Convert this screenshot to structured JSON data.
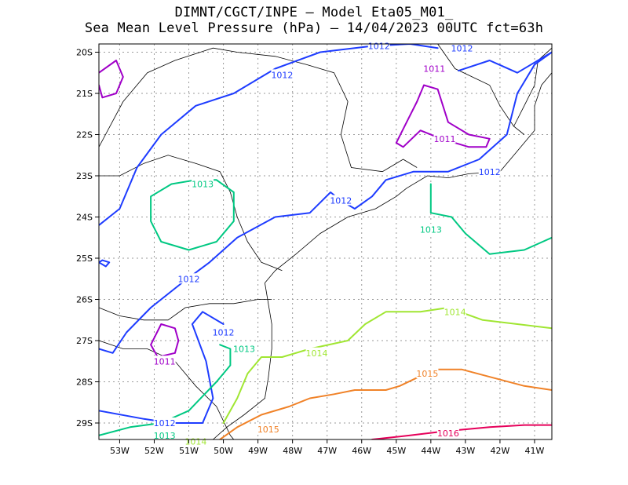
{
  "header": {
    "line1": "DIMNT/CGCT/INPE –  Model Eta05_M01_",
    "line2": "Sea Mean Level Pressure (hPa) – 14/04/2023 00UTC fct=63h"
  },
  "chart_data": {
    "type": "contour",
    "title": "DIMNT/CGCT/INPE –  Model Eta05_M01_",
    "subtitle": "Sea Mean Level Pressure (hPa) – 14/04/2023 00UTC fct=63h",
    "xlim": [
      -53.6,
      -40.5
    ],
    "ylim": [
      -29.4,
      -19.8
    ],
    "x_ticks": [
      "53W",
      "52W",
      "51W",
      "50W",
      "49W",
      "48W",
      "47W",
      "46W",
      "45W",
      "44W",
      "43W",
      "42W",
      "41W"
    ],
    "y_ticks": [
      "20S",
      "21S",
      "22S",
      "23S",
      "24S",
      "25S",
      "26S",
      "27S",
      "28S",
      "29S"
    ],
    "grid": true,
    "colors": {
      "1011": "#a000c8",
      "1012": "#1e3cff",
      "1013": "#00c882",
      "1014": "#a0e632",
      "1015": "#f08228",
      "1016": "#e6005a",
      "coast": "#000000"
    },
    "contours": [
      {
        "level": 1012,
        "color": "#1e3cff",
        "points": [
          [
            -53.6,
            -24.2
          ],
          [
            -53.0,
            -23.8
          ],
          [
            -52.5,
            -22.8
          ],
          [
            -51.8,
            -22.0
          ],
          [
            -50.8,
            -21.3
          ],
          [
            -49.7,
            -21.0
          ],
          [
            -48.5,
            -20.4
          ],
          [
            -47.2,
            -20.0
          ],
          [
            -45.7,
            -19.85
          ],
          [
            -44.6,
            -19.8
          ],
          [
            -43.8,
            -19.9
          ]
        ]
      },
      {
        "level": 1012,
        "color": "#1e3cff",
        "points": [
          [
            -43.2,
            -20.45
          ],
          [
            -42.3,
            -20.2
          ],
          [
            -41.5,
            -20.5
          ],
          [
            -40.5,
            -20.0
          ]
        ]
      },
      {
        "level": 1012,
        "color": "#1e3cff",
        "points": [
          [
            -40.5,
            -20.0
          ],
          [
            -41.0,
            -20.3
          ],
          [
            -41.5,
            -21.0
          ],
          [
            -41.8,
            -22.0
          ],
          [
            -42.2,
            -22.3
          ],
          [
            -42.6,
            -22.6
          ],
          [
            -43.5,
            -22.9
          ],
          [
            -44.5,
            -22.9
          ],
          [
            -45.3,
            -23.1
          ],
          [
            -45.7,
            -23.5
          ],
          [
            -46.2,
            -23.8
          ],
          [
            -46.6,
            -23.6
          ],
          [
            -46.9,
            -23.4
          ],
          [
            -47.5,
            -23.9
          ],
          [
            -48.5,
            -24.0
          ],
          [
            -49.6,
            -24.5
          ],
          [
            -50.4,
            -25.1
          ],
          [
            -51.2,
            -25.6
          ],
          [
            -52.1,
            -26.2
          ],
          [
            -52.8,
            -26.8
          ],
          [
            -53.2,
            -27.3
          ],
          [
            -53.6,
            -27.2
          ]
        ]
      },
      {
        "level": 1012,
        "color": "#1e3cff",
        "points": [
          [
            -50.0,
            -26.6
          ],
          [
            -50.6,
            -26.3
          ],
          [
            -50.9,
            -26.6
          ],
          [
            -50.5,
            -27.5
          ],
          [
            -50.3,
            -28.4
          ],
          [
            -50.6,
            -29.0
          ],
          [
            -51.5,
            -29.0
          ],
          [
            -52.3,
            -28.9
          ],
          [
            -53.6,
            -28.7
          ]
        ]
      },
      {
        "level": 1012,
        "color": "#1e3cff",
        "points": [
          [
            -53.5,
            -25.05
          ],
          [
            -53.3,
            -25.1
          ],
          [
            -53.4,
            -25.2
          ],
          [
            -53.6,
            -25.1
          ],
          [
            -53.5,
            -25.05
          ]
        ]
      },
      {
        "level": 1011,
        "color": "#a000c8",
        "points": [
          [
            -53.6,
            -20.5
          ],
          [
            -53.1,
            -20.2
          ],
          [
            -52.9,
            -20.6
          ],
          [
            -53.1,
            -21.0
          ],
          [
            -53.5,
            -21.1
          ],
          [
            -53.6,
            -20.8
          ]
        ]
      },
      {
        "level": 1011,
        "color": "#a000c8",
        "points": [
          [
            -44.2,
            -20.8
          ],
          [
            -43.8,
            -20.9
          ],
          [
            -43.5,
            -21.7
          ],
          [
            -42.9,
            -22.0
          ],
          [
            -42.3,
            -22.1
          ],
          [
            -42.4,
            -22.3
          ],
          [
            -42.9,
            -22.3
          ],
          [
            -43.7,
            -22.1
          ],
          [
            -44.3,
            -21.9
          ],
          [
            -44.8,
            -22.3
          ],
          [
            -45.0,
            -22.2
          ],
          [
            -44.7,
            -21.7
          ],
          [
            -44.4,
            -21.2
          ],
          [
            -44.2,
            -20.8
          ]
        ]
      },
      {
        "level": 1011,
        "color": "#a000c8",
        "points": [
          [
            -51.4,
            -27.3
          ],
          [
            -51.9,
            -27.4
          ],
          [
            -52.1,
            -27.1
          ],
          [
            -51.8,
            -26.6
          ],
          [
            -51.4,
            -26.7
          ],
          [
            -51.3,
            -27.0
          ],
          [
            -51.4,
            -27.3
          ]
        ]
      },
      {
        "level": 1013,
        "color": "#00c882",
        "points": [
          [
            -49.7,
            -23.4
          ],
          [
            -50.2,
            -23.1
          ],
          [
            -50.8,
            -23.1
          ],
          [
            -51.5,
            -23.2
          ],
          [
            -52.1,
            -23.5
          ],
          [
            -52.1,
            -24.1
          ],
          [
            -51.8,
            -24.6
          ],
          [
            -51.0,
            -24.8
          ],
          [
            -50.2,
            -24.6
          ],
          [
            -49.7,
            -24.1
          ],
          [
            -49.7,
            -23.4
          ]
        ]
      },
      {
        "level": 1013,
        "color": "#00c882",
        "points": [
          [
            -44.0,
            -23.2
          ],
          [
            -44.0,
            -23.9
          ],
          [
            -43.4,
            -24.0
          ],
          [
            -43.0,
            -24.4
          ],
          [
            -42.3,
            -24.9
          ],
          [
            -41.3,
            -24.8
          ],
          [
            -40.5,
            -24.5
          ]
        ]
      },
      {
        "level": 1013,
        "color": "#00c882",
        "points": [
          [
            -53.6,
            -29.3
          ],
          [
            -52.7,
            -29.1
          ],
          [
            -51.8,
            -29.0
          ],
          [
            -51.0,
            -28.7
          ],
          [
            -50.2,
            -28.0
          ],
          [
            -49.8,
            -27.6
          ],
          [
            -49.8,
            -27.2
          ],
          [
            -50.1,
            -27.1
          ]
        ]
      },
      {
        "level": 1014,
        "color": "#a0e632",
        "points": [
          [
            -50.0,
            -29.0
          ],
          [
            -49.6,
            -28.4
          ],
          [
            -49.3,
            -27.8
          ],
          [
            -48.9,
            -27.4
          ],
          [
            -48.3,
            -27.4
          ],
          [
            -47.5,
            -27.2
          ],
          [
            -46.4,
            -27.0
          ],
          [
            -45.9,
            -26.6
          ],
          [
            -45.3,
            -26.3
          ],
          [
            -44.3,
            -26.3
          ],
          [
            -43.5,
            -26.2
          ],
          [
            -42.5,
            -26.5
          ],
          [
            -41.5,
            -26.6
          ],
          [
            -40.5,
            -26.7
          ]
        ]
      },
      {
        "level": 1015,
        "color": "#f08228",
        "points": [
          [
            -50.1,
            -29.4
          ],
          [
            -49.6,
            -29.1
          ],
          [
            -48.9,
            -28.8
          ],
          [
            -48.1,
            -28.6
          ],
          [
            -47.5,
            -28.4
          ],
          [
            -46.8,
            -28.3
          ],
          [
            -46.2,
            -28.2
          ],
          [
            -45.3,
            -28.2
          ],
          [
            -44.9,
            -28.1
          ],
          [
            -44.4,
            -27.9
          ],
          [
            -43.9,
            -27.7
          ],
          [
            -43.1,
            -27.7
          ],
          [
            -42.2,
            -27.9
          ],
          [
            -41.3,
            -28.1
          ],
          [
            -40.5,
            -28.2
          ]
        ]
      },
      {
        "level": 1016,
        "color": "#e6005a",
        "points": [
          [
            -45.7,
            -29.4
          ],
          [
            -44.6,
            -29.3
          ],
          [
            -43.6,
            -29.2
          ],
          [
            -42.3,
            -29.1
          ],
          [
            -41.3,
            -29.05
          ],
          [
            -40.5,
            -29.05
          ]
        ]
      }
    ],
    "contour_labels": [
      {
        "text": "1012",
        "x": -45.5,
        "y": -19.85,
        "color": "#1e3cff"
      },
      {
        "text": "1012",
        "x": -43.1,
        "y": -19.9,
        "color": "#1e3cff"
      },
      {
        "text": "1012",
        "x": -48.3,
        "y": -20.55,
        "color": "#1e3cff"
      },
      {
        "text": "1012",
        "x": -42.3,
        "y": -22.9,
        "color": "#1e3cff"
      },
      {
        "text": "1012",
        "x": -46.6,
        "y": -23.6,
        "color": "#1e3cff"
      },
      {
        "text": "1012",
        "x": -51.0,
        "y": -25.5,
        "color": "#1e3cff"
      },
      {
        "text": "1012",
        "x": -50.0,
        "y": -26.8,
        "color": "#1e3cff"
      },
      {
        "text": "1012",
        "x": -51.7,
        "y": -29.0,
        "color": "#1e3cff"
      },
      {
        "text": "1011",
        "x": -43.9,
        "y": -20.4,
        "color": "#a000c8"
      },
      {
        "text": "1011",
        "x": -43.6,
        "y": -22.1,
        "color": "#a000c8"
      },
      {
        "text": "1011",
        "x": -51.7,
        "y": -27.5,
        "color": "#a000c8"
      },
      {
        "text": "1013",
        "x": -50.6,
        "y": -23.2,
        "color": "#00c882"
      },
      {
        "text": "1013",
        "x": -44.0,
        "y": -24.3,
        "color": "#00c882"
      },
      {
        "text": "1013",
        "x": -49.4,
        "y": -27.2,
        "color": "#00c882"
      },
      {
        "text": "1013",
        "x": -51.7,
        "y": -29.3,
        "color": "#00c882"
      },
      {
        "text": "1014",
        "x": -43.3,
        "y": -26.3,
        "color": "#a0e632"
      },
      {
        "text": "1014",
        "x": -47.3,
        "y": -27.3,
        "color": "#a0e632"
      },
      {
        "text": "1014",
        "x": -50.8,
        "y": -29.45,
        "color": "#a0e632"
      },
      {
        "text": "1015",
        "x": -44.1,
        "y": -27.8,
        "color": "#f08228"
      },
      {
        "text": "1015",
        "x": -48.7,
        "y": -29.15,
        "color": "#f08228"
      },
      {
        "text": "1016",
        "x": -43.5,
        "y": -29.25,
        "color": "#e6005a"
      }
    ],
    "boundaries": [
      [
        [
          -48.8,
          -25.6
        ],
        [
          -48.5,
          -25.3
        ],
        [
          -47.9,
          -24.9
        ],
        [
          -47.2,
          -24.4
        ],
        [
          -46.4,
          -24.0
        ],
        [
          -45.6,
          -23.8
        ],
        [
          -45.0,
          -23.5
        ],
        [
          -44.7,
          -23.3
        ],
        [
          -44.1,
          -23.0
        ],
        [
          -43.5,
          -23.05
        ],
        [
          -42.9,
          -22.95
        ],
        [
          -42.0,
          -22.9
        ],
        [
          -41.5,
          -22.4
        ],
        [
          -41.0,
          -21.9
        ],
        [
          -41.0,
          -21.3
        ],
        [
          -40.8,
          -20.8
        ],
        [
          -40.5,
          -20.5
        ]
      ],
      [
        [
          -48.8,
          -25.6
        ],
        [
          -48.7,
          -26.1
        ],
        [
          -48.6,
          -26.6
        ],
        [
          -48.6,
          -27.2
        ],
        [
          -48.7,
          -27.9
        ],
        [
          -48.8,
          -28.4
        ],
        [
          -49.4,
          -28.8
        ],
        [
          -49.9,
          -29.1
        ],
        [
          -50.3,
          -29.4
        ]
      ],
      [
        [
          -53.6,
          -26.2
        ],
        [
          -53.0,
          -26.4
        ],
        [
          -52.3,
          -26.5
        ],
        [
          -51.6,
          -26.5
        ],
        [
          -51.1,
          -26.2
        ],
        [
          -50.4,
          -26.1
        ],
        [
          -49.7,
          -26.1
        ],
        [
          -49.0,
          -26.0
        ],
        [
          -48.6,
          -26.0
        ]
      ],
      [
        [
          -53.6,
          -27.0
        ],
        [
          -52.9,
          -27.2
        ],
        [
          -52.2,
          -27.2
        ],
        [
          -51.4,
          -27.5
        ],
        [
          -50.8,
          -28.1
        ],
        [
          -50.2,
          -28.6
        ],
        [
          -49.8,
          -29.3
        ],
        [
          -49.7,
          -29.4
        ]
      ],
      [
        [
          -53.6,
          -23.0
        ],
        [
          -53.0,
          -23.0
        ],
        [
          -52.3,
          -22.7
        ],
        [
          -51.6,
          -22.5
        ],
        [
          -50.8,
          -22.7
        ],
        [
          -50.1,
          -22.9
        ],
        [
          -49.8,
          -23.4
        ],
        [
          -49.6,
          -24.0
        ],
        [
          -49.3,
          -24.6
        ],
        [
          -48.9,
          -25.1
        ],
        [
          -48.3,
          -25.3
        ]
      ],
      [
        [
          -53.6,
          -22.3
        ],
        [
          -52.9,
          -21.2
        ],
        [
          -52.2,
          -20.5
        ],
        [
          -51.4,
          -20.2
        ],
        [
          -50.3,
          -19.9
        ],
        [
          -49.6,
          -20.0
        ],
        [
          -48.5,
          -20.1
        ],
        [
          -47.6,
          -20.3
        ],
        [
          -46.8,
          -20.5
        ],
        [
          -46.4,
          -21.2
        ],
        [
          -46.6,
          -22.0
        ],
        [
          -46.3,
          -22.8
        ],
        [
          -45.4,
          -22.9
        ],
        [
          -44.8,
          -22.6
        ],
        [
          -44.4,
          -22.8
        ]
      ],
      [
        [
          -43.8,
          -19.8
        ],
        [
          -43.3,
          -20.4
        ],
        [
          -42.3,
          -20.8
        ],
        [
          -42.0,
          -21.3
        ],
        [
          -41.6,
          -21.8
        ],
        [
          -41.3,
          -22.0
        ]
      ],
      [
        [
          -41.6,
          -21.8
        ],
        [
          -41.3,
          -21.3
        ],
        [
          -41.0,
          -20.8
        ],
        [
          -40.9,
          -20.2
        ],
        [
          -40.5,
          -19.9
        ]
      ]
    ]
  }
}
